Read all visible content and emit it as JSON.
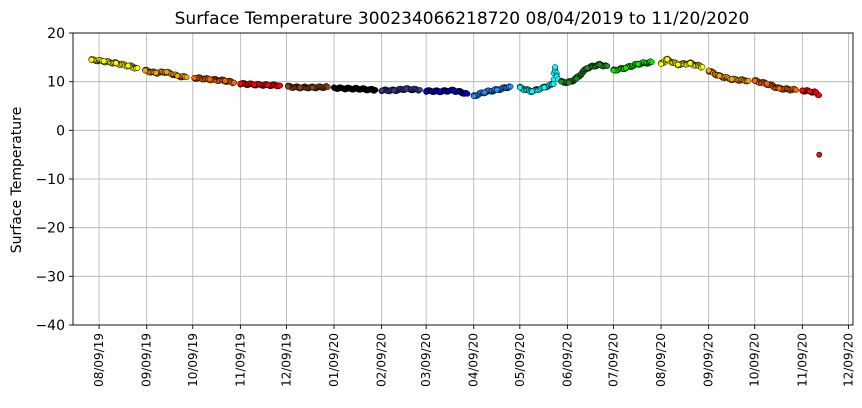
{
  "chart_data": {
    "type": "scatter",
    "title": "Surface Temperature 300234066218720  08/04/2019 to 11/20/2020",
    "xlabel": "",
    "ylabel": "Surface Temperature",
    "ylim": [
      -40,
      20
    ],
    "xlim": [
      "2019-07-23",
      "2020-12-12"
    ],
    "grid": true,
    "legend": "none",
    "y_ticks": [
      {
        "value": -40,
        "label": "−40"
      },
      {
        "value": -30,
        "label": "−30"
      },
      {
        "value": -20,
        "label": "−20"
      },
      {
        "value": -10,
        "label": "−10"
      },
      {
        "value": 0,
        "label": "0"
      },
      {
        "value": 10,
        "label": "10"
      },
      {
        "value": 20,
        "label": "20"
      }
    ],
    "x_ticks": [
      {
        "value": "2019-08-09",
        "label": "08/09/19"
      },
      {
        "value": "2019-09-09",
        "label": "09/09/19"
      },
      {
        "value": "2019-10-09",
        "label": "10/09/19"
      },
      {
        "value": "2019-11-09",
        "label": "11/09/19"
      },
      {
        "value": "2019-12-09",
        "label": "12/09/19"
      },
      {
        "value": "2020-01-09",
        "label": "01/09/20"
      },
      {
        "value": "2020-02-09",
        "label": "02/09/20"
      },
      {
        "value": "2020-03-09",
        "label": "03/09/20"
      },
      {
        "value": "2020-04-09",
        "label": "04/09/20"
      },
      {
        "value": "2020-05-09",
        "label": "05/09/20"
      },
      {
        "value": "2020-06-09",
        "label": "06/09/20"
      },
      {
        "value": "2020-07-09",
        "label": "07/09/20"
      },
      {
        "value": "2020-08-09",
        "label": "08/09/20"
      },
      {
        "value": "2020-09-09",
        "label": "09/09/20"
      },
      {
        "value": "2020-10-09",
        "label": "10/09/20"
      },
      {
        "value": "2020-11-09",
        "label": "11/09/20"
      },
      {
        "value": "2020-12-09",
        "label": "12/09/20"
      }
    ],
    "color_scale": "month of year",
    "series": [
      {
        "color": "#ffff00",
        "points": [
          {
            "x": "2019-08-04",
            "y": 14.5
          },
          {
            "x": "2019-08-12",
            "y": 14.2
          },
          {
            "x": "2019-08-20",
            "y": 13.8
          },
          {
            "x": "2019-08-28",
            "y": 13.3
          },
          {
            "x": "2019-09-03",
            "y": 12.8
          }
        ]
      },
      {
        "color": "#ffa500",
        "points": [
          {
            "x": "2019-09-08",
            "y": 12.3
          },
          {
            "x": "2019-09-15",
            "y": 11.8
          },
          {
            "x": "2019-09-22",
            "y": 12.0
          },
          {
            "x": "2019-09-29",
            "y": 11.2
          },
          {
            "x": "2019-10-05",
            "y": 10.9
          }
        ]
      },
      {
        "color": "#ff6600",
        "points": [
          {
            "x": "2019-10-10",
            "y": 10.8
          },
          {
            "x": "2019-10-20",
            "y": 10.5
          },
          {
            "x": "2019-10-30",
            "y": 10.2
          },
          {
            "x": "2019-11-05",
            "y": 9.8
          }
        ]
      },
      {
        "color": "#ff0000",
        "points": [
          {
            "x": "2019-11-09",
            "y": 9.6
          },
          {
            "x": "2019-11-18",
            "y": 9.4
          },
          {
            "x": "2019-11-27",
            "y": 9.3
          },
          {
            "x": "2019-12-05",
            "y": 9.2
          }
        ]
      },
      {
        "color": "#8b4513",
        "points": [
          {
            "x": "2019-12-10",
            "y": 9.0
          },
          {
            "x": "2019-12-18",
            "y": 8.8
          },
          {
            "x": "2019-12-26",
            "y": 8.8
          },
          {
            "x": "2020-01-05",
            "y": 8.9
          }
        ]
      },
      {
        "color": "#000000",
        "points": [
          {
            "x": "2020-01-09",
            "y": 8.7
          },
          {
            "x": "2020-01-18",
            "y": 8.6
          },
          {
            "x": "2020-01-27",
            "y": 8.5
          },
          {
            "x": "2020-02-05",
            "y": 8.3
          }
        ]
      },
      {
        "color": "#3a3a8c",
        "points": [
          {
            "x": "2020-02-09",
            "y": 8.2
          },
          {
            "x": "2020-02-17",
            "y": 8.2
          },
          {
            "x": "2020-02-25",
            "y": 8.5
          },
          {
            "x": "2020-03-05",
            "y": 8.3
          }
        ]
      },
      {
        "color": "#0000cd",
        "points": [
          {
            "x": "2020-03-09",
            "y": 8.1
          },
          {
            "x": "2020-03-18",
            "y": 8.0
          },
          {
            "x": "2020-03-27",
            "y": 8.2
          },
          {
            "x": "2020-04-05",
            "y": 7.5
          }
        ]
      },
      {
        "color": "#1e90ff",
        "points": [
          {
            "x": "2020-04-09",
            "y": 7.0
          },
          {
            "x": "2020-04-16",
            "y": 7.8
          },
          {
            "x": "2020-04-24",
            "y": 8.3
          },
          {
            "x": "2020-05-03",
            "y": 9.0
          }
        ]
      },
      {
        "color": "#00ffff",
        "points": [
          {
            "x": "2020-05-09",
            "y": 8.8
          },
          {
            "x": "2020-05-17",
            "y": 8.0
          },
          {
            "x": "2020-05-25",
            "y": 8.8
          },
          {
            "x": "2020-05-31",
            "y": 9.5
          },
          {
            "x": "2020-06-01",
            "y": 13.0
          },
          {
            "x": "2020-06-03",
            "y": 10.5
          }
        ]
      },
      {
        "color": "#228b22",
        "points": [
          {
            "x": "2020-06-05",
            "y": 10.0
          },
          {
            "x": "2020-06-10",
            "y": 9.8
          },
          {
            "x": "2020-06-15",
            "y": 10.6
          },
          {
            "x": "2020-06-22",
            "y": 12.8
          },
          {
            "x": "2020-06-30",
            "y": 13.5
          },
          {
            "x": "2020-07-05",
            "y": 13.2
          }
        ]
      },
      {
        "color": "#00ee00",
        "points": [
          {
            "x": "2020-07-09",
            "y": 12.3
          },
          {
            "x": "2020-07-17",
            "y": 12.8
          },
          {
            "x": "2020-07-25",
            "y": 13.6
          },
          {
            "x": "2020-08-03",
            "y": 14.0
          }
        ]
      },
      {
        "color": "#ffff00",
        "points": [
          {
            "x": "2020-08-09",
            "y": 13.6
          },
          {
            "x": "2020-08-13",
            "y": 14.6
          },
          {
            "x": "2020-08-20",
            "y": 13.5
          },
          {
            "x": "2020-08-28",
            "y": 13.8
          },
          {
            "x": "2020-09-05",
            "y": 13.0
          }
        ]
      },
      {
        "color": "#ffa500",
        "points": [
          {
            "x": "2020-09-09",
            "y": 12.3
          },
          {
            "x": "2020-09-16",
            "y": 11.2
          },
          {
            "x": "2020-09-24",
            "y": 10.5
          },
          {
            "x": "2020-10-05",
            "y": 10.2
          }
        ]
      },
      {
        "color": "#ff6600",
        "points": [
          {
            "x": "2020-10-09",
            "y": 10.2
          },
          {
            "x": "2020-10-17",
            "y": 9.6
          },
          {
            "x": "2020-10-25",
            "y": 8.6
          },
          {
            "x": "2020-11-05",
            "y": 8.3
          }
        ]
      },
      {
        "color": "#ff0000",
        "points": [
          {
            "x": "2020-11-09",
            "y": 8.2
          },
          {
            "x": "2020-11-14",
            "y": 8.0
          },
          {
            "x": "2020-11-18",
            "y": 7.8
          },
          {
            "x": "2020-11-20",
            "y": 7.2
          }
        ]
      }
    ],
    "outliers": [
      {
        "x": "2020-11-20",
        "y": -5.0,
        "color": "#cc2222"
      }
    ]
  }
}
